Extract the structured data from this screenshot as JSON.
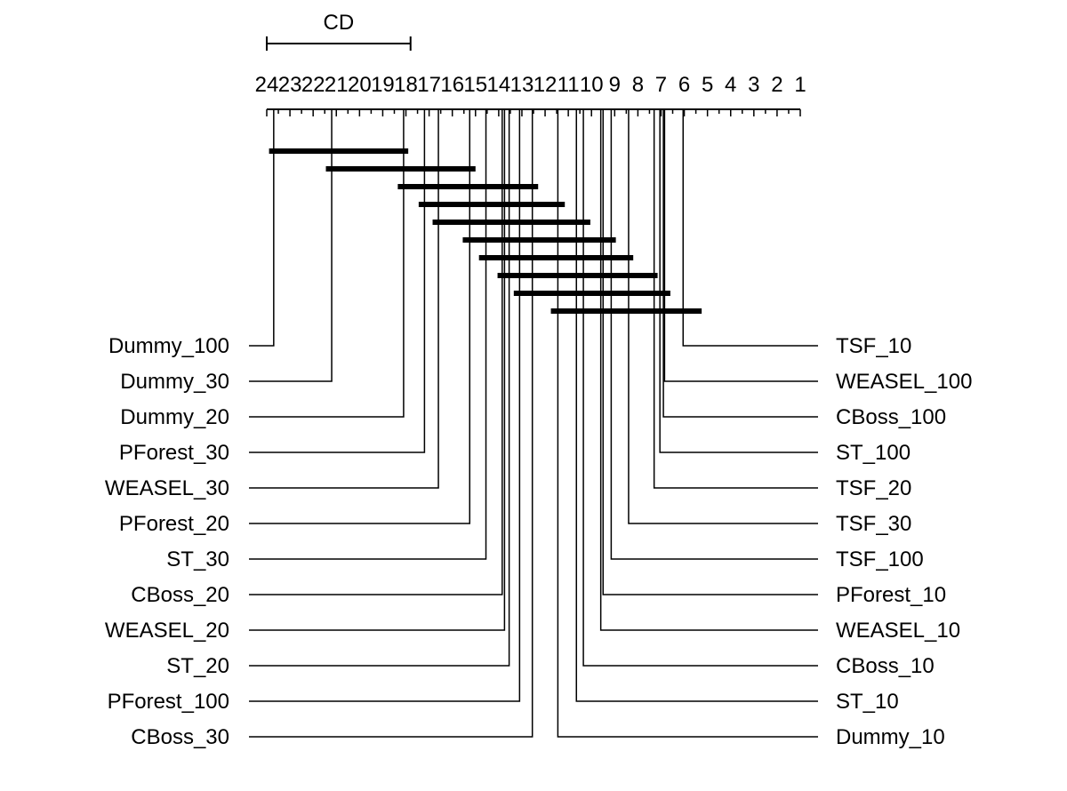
{
  "chart_data": {
    "type": "critical-difference-diagram",
    "cd_label": "CD",
    "cd_value": 6.2,
    "axis_range": [
      24,
      1
    ],
    "axis_reversed": true,
    "ticks": [
      "24",
      "23",
      "22",
      "21",
      "20",
      "19",
      "18",
      "17",
      "16",
      "15",
      "14",
      "13",
      "12",
      "11",
      "10",
      "9",
      "8",
      "7",
      "6",
      "5",
      "4",
      "3",
      "2",
      "1"
    ],
    "methods_left": [
      {
        "name": "Dummy_100",
        "rank": 23.7
      },
      {
        "name": "Dummy_30",
        "rank": 21.2
      },
      {
        "name": "Dummy_20",
        "rank": 18.1
      },
      {
        "name": "PForest_30",
        "rank": 17.2
      },
      {
        "name": "WEASEL_30",
        "rank": 16.6
      },
      {
        "name": "PForest_20",
        "rank": 15.25
      },
      {
        "name": "ST_30",
        "rank": 14.55
      },
      {
        "name": "CBoss_20",
        "rank": 13.85
      },
      {
        "name": "WEASEL_20",
        "rank": 13.75
      },
      {
        "name": "ST_20",
        "rank": 13.55
      },
      {
        "name": "PForest_100",
        "rank": 13.1
      },
      {
        "name": "CBoss_30",
        "rank": 12.55
      }
    ],
    "methods_right": [
      {
        "name": "TSF_10",
        "rank": 6.05
      },
      {
        "name": "WEASEL_100",
        "rank": 6.85
      },
      {
        "name": "CBoss_100",
        "rank": 6.9
      },
      {
        "name": "ST_100",
        "rank": 7.05
      },
      {
        "name": "TSF_20",
        "rank": 7.3
      },
      {
        "name": "TSF_30",
        "rank": 8.4
      },
      {
        "name": "TSF_100",
        "rank": 9.15
      },
      {
        "name": "PForest_10",
        "rank": 9.5
      },
      {
        "name": "WEASEL_10",
        "rank": 9.6
      },
      {
        "name": "CBoss_10",
        "rank": 10.35
      },
      {
        "name": "ST_10",
        "rank": 10.65
      },
      {
        "name": "Dummy_10",
        "rank": 11.45
      }
    ],
    "cliques": [
      [
        23.9,
        17.9
      ],
      [
        21.45,
        15.0
      ],
      [
        18.35,
        12.3
      ],
      [
        17.45,
        11.15
      ],
      [
        16.85,
        10.05
      ],
      [
        15.55,
        8.95
      ],
      [
        14.85,
        8.2
      ],
      [
        14.05,
        7.15
      ],
      [
        13.35,
        6.6
      ],
      [
        11.75,
        5.25
      ]
    ]
  }
}
